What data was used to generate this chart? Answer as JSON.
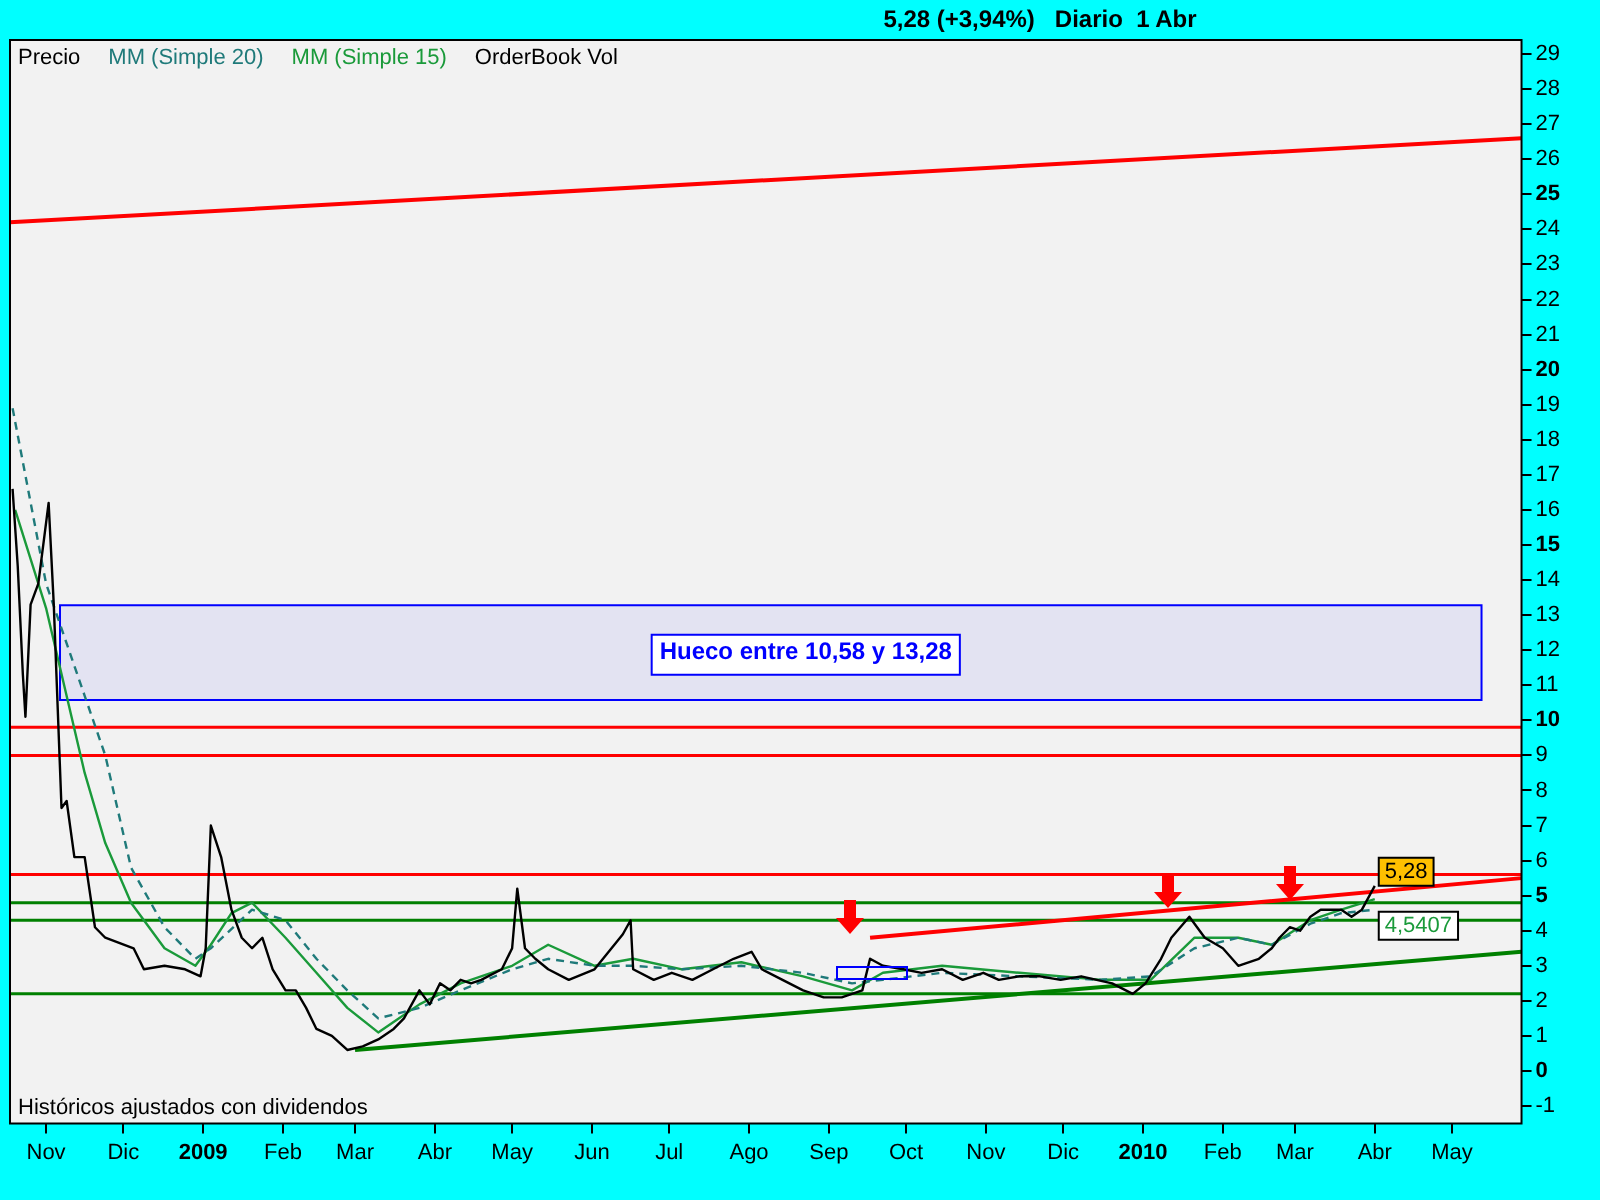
{
  "chart_data": {
    "type": "line",
    "title": "5,28 (+3,94%)   Diario  1 Abr",
    "xlim": [
      "2008-10-18",
      "2010-05-28"
    ],
    "xticks": [
      {
        "value": "2008-11-01",
        "label": "Nov"
      },
      {
        "value": "2008-12-01",
        "label": "Dic"
      },
      {
        "value": "2009-01-01",
        "label": "2009"
      },
      {
        "value": "2009-02-01",
        "label": "Feb"
      },
      {
        "value": "2009-03-01",
        "label": "Mar"
      },
      {
        "value": "2009-04-01",
        "label": "Abr"
      },
      {
        "value": "2009-05-01",
        "label": "May"
      },
      {
        "value": "2009-06-01",
        "label": "Jun"
      },
      {
        "value": "2009-07-01",
        "label": "Jul"
      },
      {
        "value": "2009-08-01",
        "label": "Ago"
      },
      {
        "value": "2009-09-01",
        "label": "Sep"
      },
      {
        "value": "2009-10-01",
        "label": "Oct"
      },
      {
        "value": "2009-11-01",
        "label": "Nov"
      },
      {
        "value": "2009-12-01",
        "label": "Dic"
      },
      {
        "value": "2010-01-01",
        "label": "2010"
      },
      {
        "value": "2010-02-01",
        "label": "Feb"
      },
      {
        "value": "2010-03-01",
        "label": "Mar"
      },
      {
        "value": "2010-04-01",
        "label": "Abr"
      },
      {
        "value": "2010-05-01",
        "label": "May"
      }
    ],
    "ylim": [
      -1.5,
      29.4
    ],
    "yticks": [
      -1,
      0,
      1,
      2,
      3,
      4,
      5,
      6,
      7,
      8,
      9,
      10,
      11,
      12,
      13,
      14,
      15,
      16,
      17,
      18,
      19,
      20,
      21,
      22,
      23,
      24,
      25,
      26,
      27,
      28,
      29
    ],
    "legend": "top left",
    "marker": "none",
    "series": [
      {
        "name": "Precio",
        "color": "#000000",
        "x": [
          "2008-10-19",
          "2008-10-21",
          "2008-10-23",
          "2008-10-24",
          "2008-10-26",
          "2008-10-29",
          "2008-11-02",
          "2008-11-04",
          "2008-11-07",
          "2008-11-09",
          "2008-11-12",
          "2008-11-16",
          "2008-11-20",
          "2008-11-24",
          "2008-12-05",
          "2008-12-09",
          "2008-12-17",
          "2008-12-25",
          "2008-12-31",
          "2009-01-02",
          "2009-01-04",
          "2009-01-08",
          "2009-01-12",
          "2009-01-16",
          "2009-01-20",
          "2009-01-24",
          "2009-01-28",
          "2009-02-02",
          "2009-02-06",
          "2009-02-10",
          "2009-02-14",
          "2009-02-20",
          "2009-02-26",
          "2009-03-04",
          "2009-03-10",
          "2009-03-16",
          "2009-03-20",
          "2009-03-26",
          "2009-03-30",
          "2009-04-03",
          "2009-04-07",
          "2009-04-11",
          "2009-04-15",
          "2009-04-19",
          "2009-04-27",
          "2009-05-01",
          "2009-05-03",
          "2009-05-06",
          "2009-05-10",
          "2009-05-15",
          "2009-05-23",
          "2009-06-02",
          "2009-06-13",
          "2009-06-16",
          "2009-06-17",
          "2009-06-25",
          "2009-07-02",
          "2009-07-10",
          "2009-07-18",
          "2009-07-26",
          "2009-08-02",
          "2009-08-06",
          "2009-08-14",
          "2009-08-22",
          "2009-08-30",
          "2009-09-06",
          "2009-09-14",
          "2009-09-17",
          "2009-09-22",
          "2009-09-30",
          "2009-10-07",
          "2009-10-15",
          "2009-10-23",
          "2009-10-31",
          "2009-11-06",
          "2009-11-14",
          "2009-11-22",
          "2009-11-30",
          "2009-12-08",
          "2009-12-20",
          "2009-12-28",
          "2010-01-02",
          "2010-01-08",
          "2010-01-12",
          "2010-01-19",
          "2010-01-25",
          "2010-02-01",
          "2010-02-07",
          "2010-02-15",
          "2010-02-20",
          "2010-02-23",
          "2010-02-27",
          "2010-03-03",
          "2010-03-07",
          "2010-03-11",
          "2010-03-19",
          "2010-03-23",
          "2010-03-27",
          "2010-04-01"
        ],
        "values": [
          16.6,
          14.4,
          11.3,
          10.1,
          13.3,
          13.9,
          16.2,
          13.3,
          7.5,
          7.7,
          6.1,
          6.1,
          4.1,
          3.8,
          3.5,
          2.9,
          3.0,
          2.9,
          2.7,
          3.5,
          7.0,
          6.1,
          4.6,
          3.8,
          3.5,
          3.8,
          2.9,
          2.3,
          2.3,
          1.8,
          1.2,
          1.0,
          0.6,
          0.7,
          0.9,
          1.2,
          1.5,
          2.3,
          1.9,
          2.5,
          2.3,
          2.6,
          2.5,
          2.6,
          2.9,
          3.5,
          5.2,
          3.5,
          3.2,
          2.9,
          2.6,
          2.9,
          3.9,
          4.3,
          2.9,
          2.6,
          2.8,
          2.6,
          2.9,
          3.2,
          3.4,
          2.9,
          2.6,
          2.3,
          2.1,
          2.1,
          2.3,
          3.2,
          3.0,
          2.9,
          2.8,
          2.9,
          2.6,
          2.8,
          2.6,
          2.7,
          2.7,
          2.6,
          2.7,
          2.5,
          2.2,
          2.5,
          3.2,
          3.8,
          4.4,
          3.8,
          3.5,
          3.0,
          3.2,
          3.5,
          3.8,
          4.1,
          4.0,
          4.4,
          4.6,
          4.6,
          4.4,
          4.6,
          5.28
        ]
      },
      {
        "name": "MM (Simple 20)",
        "color": "#1f7a7a",
        "line_style": "dashed",
        "x": [
          "2008-10-19",
          "2008-11-01",
          "2008-11-16",
          "2008-11-24",
          "2008-12-04",
          "2008-12-17",
          "2008-12-29",
          "2009-01-04",
          "2009-01-20",
          "2009-02-02",
          "2009-02-14",
          "2009-02-26",
          "2009-03-10",
          "2009-03-26",
          "2009-04-11",
          "2009-05-01",
          "2009-05-15",
          "2009-06-02",
          "2009-06-17",
          "2009-07-06",
          "2009-07-29",
          "2009-08-22",
          "2009-09-10",
          "2009-09-22",
          "2009-10-15",
          "2009-11-14",
          "2009-12-16",
          "2010-01-04",
          "2010-01-21",
          "2010-02-07",
          "2010-02-20",
          "2010-03-07",
          "2010-03-19",
          "2010-04-01"
        ],
        "values": [
          18.9,
          13.9,
          10.7,
          9.0,
          5.8,
          4.1,
          3.2,
          3.5,
          4.6,
          4.3,
          3.2,
          2.3,
          1.5,
          1.8,
          2.3,
          2.9,
          3.2,
          3.0,
          3.0,
          2.9,
          3.0,
          2.8,
          2.5,
          2.6,
          2.8,
          2.7,
          2.6,
          2.7,
          3.5,
          3.8,
          3.6,
          4.2,
          4.5,
          4.6
        ]
      },
      {
        "name": "MM (Simple 15)",
        "color": "#1a9a3a",
        "x": [
          "2008-10-20",
          "2008-11-01",
          "2008-11-16",
          "2008-11-24",
          "2008-12-04",
          "2008-12-17",
          "2008-12-29",
          "2009-01-04",
          "2009-01-12",
          "2009-01-20",
          "2009-02-02",
          "2009-02-14",
          "2009-02-26",
          "2009-03-10",
          "2009-03-26",
          "2009-04-11",
          "2009-05-01",
          "2009-05-15",
          "2009-06-02",
          "2009-06-17",
          "2009-07-06",
          "2009-07-29",
          "2009-08-22",
          "2009-09-10",
          "2009-09-22",
          "2009-10-15",
          "2009-11-14",
          "2009-12-16",
          "2010-01-04",
          "2010-01-21",
          "2010-02-07",
          "2010-02-20",
          "2010-03-07",
          "2010-03-19",
          "2010-04-01"
        ],
        "values": [
          16.0,
          13.2,
          8.5,
          6.5,
          4.8,
          3.5,
          3.0,
          3.6,
          4.5,
          4.8,
          3.8,
          2.8,
          1.8,
          1.1,
          1.9,
          2.5,
          3.0,
          3.6,
          3.0,
          3.2,
          2.9,
          3.1,
          2.7,
          2.3,
          2.8,
          3.0,
          2.8,
          2.6,
          2.6,
          3.8,
          3.8,
          3.6,
          4.3,
          4.6,
          4.9
        ]
      },
      {
        "color": "#ff0000",
        "x": [
          "2008-10-18",
          "2010-05-28"
        ],
        "values": [
          24.2,
          26.6
        ]
      },
      {
        "color": "#ff0000",
        "x": [
          "2009-09-17",
          "2010-05-28"
        ],
        "values": [
          3.8,
          5.5
        ]
      },
      {
        "color": "#008000",
        "x": [
          "2009-03-01",
          "2010-05-28"
        ],
        "values": [
          0.6,
          3.4
        ]
      }
    ],
    "ref_lines": [
      {
        "axis": "y",
        "value": 9.8,
        "color": "#ff0000"
      },
      {
        "axis": "y",
        "value": 9.0,
        "color": "#ff0000"
      },
      {
        "axis": "y",
        "value": 5.6,
        "color": "#ff0000"
      },
      {
        "axis": "y",
        "value": 4.8,
        "color": "#008000"
      },
      {
        "axis": "y",
        "value": 4.3,
        "color": "#008000"
      },
      {
        "axis": "y",
        "value": 2.2,
        "color": "#008000"
      }
    ],
    "bands": [
      {
        "axis": "y",
        "from": 10.58,
        "to": 13.28,
        "label": "Hueco entre 10,58 y 13,28",
        "color": "#0000ff"
      }
    ],
    "annotations": [
      "OrderBook Vol",
      "Históricos ajustados con dividendos",
      {
        "text": "4,5407",
        "x": "2010-04-01",
        "y": 4.54
      },
      {
        "text": "5,28",
        "x": "2010-04-01",
        "y": 5.28
      }
    ]
  }
}
